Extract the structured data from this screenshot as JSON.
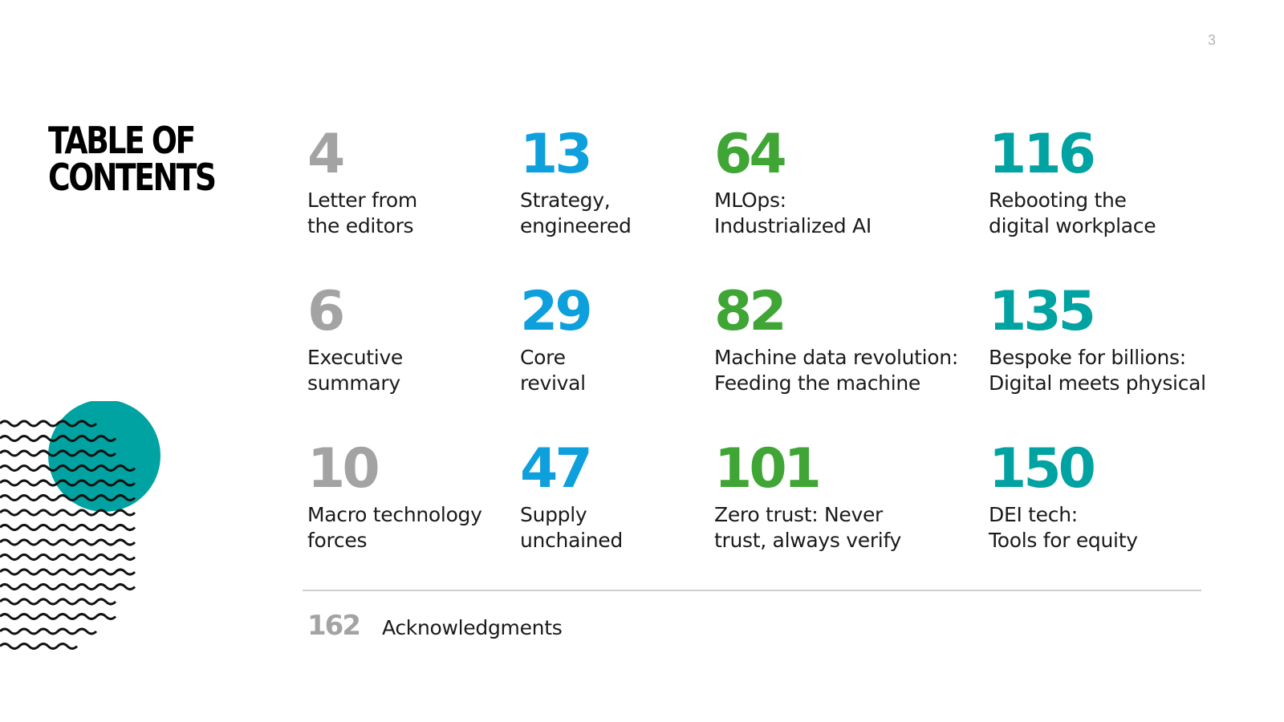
{
  "page_number": "3",
  "title": "TABLE OF\nCONTENTS",
  "colors": {
    "gray": "#a3a3a3",
    "blue": "#0ea0dc",
    "green": "#3fa535",
    "teal": "#00a3a1",
    "decor_circle": "#00a3a1"
  },
  "entries": [
    {
      "page": "4",
      "label": "Letter from\nthe editors"
    },
    {
      "page": "13",
      "label": "Strategy,\nengineered"
    },
    {
      "page": "64",
      "label": "MLOps:\nIndustrialized AI"
    },
    {
      "page": "116",
      "label": "Rebooting the\ndigital workplace"
    },
    {
      "page": "6",
      "label": "Executive\nsummary"
    },
    {
      "page": "29",
      "label": "Core\nrevival"
    },
    {
      "page": "82",
      "label": "Machine data revolution:\nFeeding the machine"
    },
    {
      "page": "135",
      "label": "Bespoke for billions:\nDigital meets physical"
    },
    {
      "page": "10",
      "label": "Macro technology\nforces"
    },
    {
      "page": "47",
      "label": "Supply\nunchained"
    },
    {
      "page": "101",
      "label": "Zero trust: Never\ntrust, always verify"
    },
    {
      "page": "150",
      "label": "DEI tech:\nTools for equity"
    }
  ],
  "acknowledgments": {
    "page": "162",
    "label": "Acknowledgments"
  }
}
